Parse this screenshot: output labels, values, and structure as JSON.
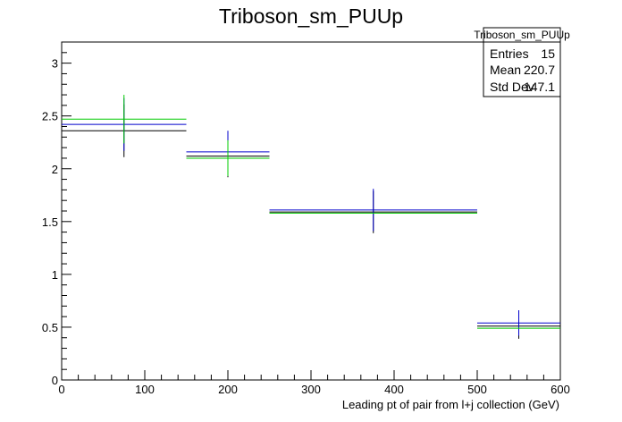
{
  "chart_data": {
    "type": "errorbar",
    "title": "Triboson_sm_PUUp",
    "xlabel": "Leading pt of pair from l+j collection (GeV)",
    "ylabel": "",
    "xlim": [
      0,
      600
    ],
    "ylim": [
      0,
      3.2
    ],
    "xticks": [
      0,
      100,
      200,
      300,
      400,
      500,
      600
    ],
    "yticks": [
      0,
      0.5,
      1,
      1.5,
      2,
      2.5,
      3
    ],
    "ytick_labels": [
      "0",
      "0.5",
      "1",
      "1.5",
      "2",
      "2.5",
      "3"
    ],
    "bins": [
      {
        "xlow": 0,
        "xhigh": 150,
        "xcenter": 75
      },
      {
        "xlow": 150,
        "xhigh": 250,
        "xcenter": 200
      },
      {
        "xlow": 250,
        "xhigh": 500,
        "xcenter": 375
      },
      {
        "xlow": 500,
        "xhigh": 600,
        "xcenter": 550
      }
    ],
    "series": [
      {
        "color": "#000000",
        "values": [
          2.36,
          2.12,
          1.59,
          0.51
        ],
        "errors": [
          0.25,
          0.2,
          0.2,
          0.12
        ]
      },
      {
        "color": "#0000cc",
        "values": [
          2.42,
          2.16,
          1.61,
          0.54
        ],
        "errors": [
          0.25,
          0.2,
          0.2,
          0.12
        ]
      },
      {
        "color": "#00cc00",
        "values": [
          2.47,
          2.1,
          1.58,
          0.49
        ],
        "errors": [
          0.23,
          0.17,
          0.0,
          0.0
        ]
      }
    ],
    "stats": {
      "name": "Triboson_sm_PUUp",
      "rows": [
        {
          "label": "Entries",
          "value": "15"
        },
        {
          "label": "Mean",
          "value": "220.7"
        },
        {
          "label": "Std Dev",
          "value": "147.1"
        }
      ]
    }
  }
}
